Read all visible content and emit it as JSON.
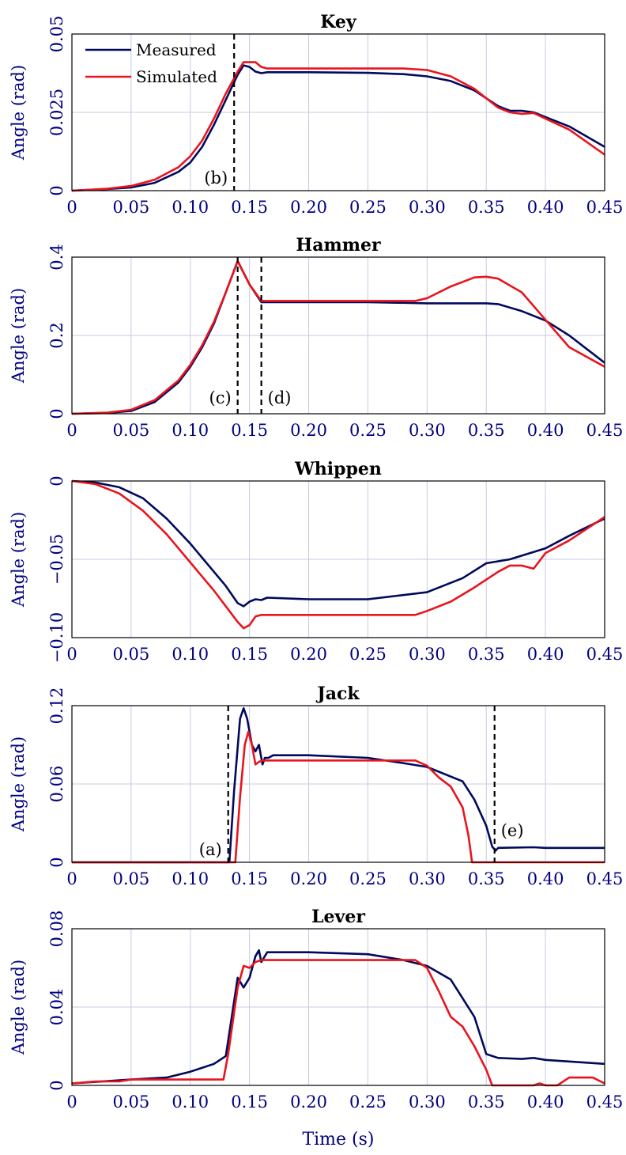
{
  "x_axis_label": "Time (s)",
  "x_ticks": [
    "0",
    "0.05",
    "0.10",
    "0.15",
    "0.20",
    "0.25",
    "0.30",
    "0.35",
    "0.40",
    "0.45"
  ],
  "legend": {
    "measured": "Measured",
    "simulated": "Simulated",
    "placement": "top-left"
  },
  "colors": {
    "measured": "#000a5c",
    "simulated": "#e8141e",
    "grid": "#c7cbe0",
    "tick_text": "#000080"
  },
  "chart_data": [
    {
      "type": "line",
      "title": "Key",
      "ylabel": "Angle (rad)",
      "xlabel": "",
      "xlim": [
        0,
        0.45
      ],
      "ylim": [
        0,
        0.05
      ],
      "y_ticks": [
        0,
        0.025,
        0.05
      ],
      "y_tick_labels": [
        "0",
        "0.025",
        "0.05"
      ],
      "grid": true,
      "series": [
        {
          "name": "Measured",
          "x": [
            0,
            0.03,
            0.05,
            0.07,
            0.09,
            0.1,
            0.11,
            0.12,
            0.13,
            0.14,
            0.145,
            0.15,
            0.155,
            0.16,
            0.165,
            0.2,
            0.25,
            0.28,
            0.3,
            0.32,
            0.34,
            0.36,
            0.37,
            0.38,
            0.39,
            0.4,
            0.42,
            0.45
          ],
          "y": [
            0,
            0.0005,
            0.001,
            0.0025,
            0.006,
            0.009,
            0.014,
            0.021,
            0.029,
            0.037,
            0.04,
            0.0395,
            0.038,
            0.0375,
            0.0378,
            0.0378,
            0.0376,
            0.0372,
            0.0365,
            0.035,
            0.032,
            0.027,
            0.0255,
            0.0255,
            0.025,
            0.0235,
            0.0205,
            0.014
          ]
        },
        {
          "name": "Simulated",
          "x": [
            0,
            0.03,
            0.05,
            0.07,
            0.09,
            0.1,
            0.11,
            0.12,
            0.13,
            0.14,
            0.145,
            0.15,
            0.155,
            0.16,
            0.165,
            0.2,
            0.25,
            0.28,
            0.3,
            0.32,
            0.34,
            0.36,
            0.37,
            0.38,
            0.39,
            0.4,
            0.42,
            0.45
          ],
          "y": [
            0,
            0.0006,
            0.0015,
            0.0035,
            0.0075,
            0.011,
            0.016,
            0.023,
            0.031,
            0.038,
            0.041,
            0.041,
            0.041,
            0.0395,
            0.039,
            0.039,
            0.039,
            0.039,
            0.0385,
            0.0365,
            0.0325,
            0.0265,
            0.025,
            0.0245,
            0.0248,
            0.023,
            0.0195,
            0.0115
          ]
        }
      ],
      "annotations": [
        {
          "label": "(b)",
          "x": 0.137
        }
      ]
    },
    {
      "type": "line",
      "title": "Hammer",
      "ylabel": "Angle (rad)",
      "xlabel": "",
      "xlim": [
        0,
        0.45
      ],
      "ylim": [
        0,
        0.4
      ],
      "y_ticks": [
        0,
        0.2,
        0.4
      ],
      "y_tick_labels": [
        "0",
        "0.2",
        "0.4"
      ],
      "grid": true,
      "series": [
        {
          "name": "Measured",
          "x": [
            0,
            0.03,
            0.05,
            0.07,
            0.09,
            0.1,
            0.11,
            0.12,
            0.13,
            0.14,
            0.15,
            0.16,
            0.2,
            0.25,
            0.3,
            0.35,
            0.36,
            0.38,
            0.4,
            0.42,
            0.45
          ],
          "y": [
            0,
            0.002,
            0.007,
            0.03,
            0.08,
            0.12,
            0.17,
            0.23,
            0.31,
            0.39,
            0.33,
            0.285,
            0.285,
            0.285,
            0.282,
            0.282,
            0.28,
            0.262,
            0.238,
            0.2,
            0.13
          ]
        },
        {
          "name": "Simulated",
          "x": [
            0,
            0.03,
            0.05,
            0.07,
            0.09,
            0.1,
            0.11,
            0.12,
            0.13,
            0.14,
            0.15,
            0.16,
            0.2,
            0.25,
            0.29,
            0.3,
            0.32,
            0.34,
            0.35,
            0.36,
            0.38,
            0.4,
            0.42,
            0.45
          ],
          "y": [
            0,
            0.003,
            0.01,
            0.035,
            0.085,
            0.125,
            0.175,
            0.235,
            0.31,
            0.39,
            0.33,
            0.288,
            0.288,
            0.288,
            0.288,
            0.295,
            0.325,
            0.348,
            0.35,
            0.345,
            0.31,
            0.24,
            0.17,
            0.12
          ]
        }
      ],
      "annotations": [
        {
          "label": "(c)",
          "x": 0.14
        },
        {
          "label": "(d)",
          "x": 0.16
        }
      ]
    },
    {
      "type": "line",
      "title": "Whippen",
      "ylabel": "Angle (rad)",
      "xlabel": "",
      "xlim": [
        0,
        0.45
      ],
      "ylim": [
        -0.1,
        0
      ],
      "y_ticks": [
        -0.1,
        -0.05,
        0
      ],
      "y_tick_labels": [
        "−0.10",
        "−0.05",
        "0"
      ],
      "grid": true,
      "series": [
        {
          "name": "Measured",
          "x": [
            0,
            0.02,
            0.04,
            0.06,
            0.08,
            0.1,
            0.12,
            0.13,
            0.14,
            0.145,
            0.15,
            0.155,
            0.16,
            0.165,
            0.2,
            0.25,
            0.3,
            0.33,
            0.35,
            0.37,
            0.4,
            0.42,
            0.45
          ],
          "y": [
            0,
            -0.001,
            -0.004,
            -0.011,
            -0.024,
            -0.04,
            -0.058,
            -0.067,
            -0.078,
            -0.08,
            -0.077,
            -0.0755,
            -0.076,
            -0.0745,
            -0.0755,
            -0.0755,
            -0.071,
            -0.062,
            -0.0525,
            -0.05,
            -0.043,
            -0.035,
            -0.024
          ]
        },
        {
          "name": "Simulated",
          "x": [
            0,
            0.02,
            0.04,
            0.06,
            0.08,
            0.1,
            0.12,
            0.13,
            0.14,
            0.145,
            0.15,
            0.155,
            0.16,
            0.2,
            0.25,
            0.29,
            0.3,
            0.32,
            0.34,
            0.36,
            0.37,
            0.38,
            0.39,
            0.4,
            0.42,
            0.45
          ],
          "y": [
            0,
            -0.002,
            -0.008,
            -0.019,
            -0.034,
            -0.052,
            -0.07,
            -0.08,
            -0.09,
            -0.094,
            -0.092,
            -0.0865,
            -0.0855,
            -0.0855,
            -0.0855,
            -0.0855,
            -0.083,
            -0.077,
            -0.068,
            -0.058,
            -0.054,
            -0.054,
            -0.056,
            -0.046,
            -0.038,
            -0.023
          ]
        }
      ],
      "annotations": []
    },
    {
      "type": "line",
      "title": "Jack",
      "ylabel": "Angle (rad)",
      "xlabel": "",
      "xlim": [
        0,
        0.45
      ],
      "ylim": [
        0,
        0.12
      ],
      "y_ticks": [
        0,
        0.06,
        0.12
      ],
      "y_tick_labels": [
        "0",
        "0.06",
        "0.12"
      ],
      "grid": true,
      "series": [
        {
          "name": "Measured",
          "x": [
            0,
            0.133,
            0.137,
            0.142,
            0.145,
            0.148,
            0.152,
            0.155,
            0.158,
            0.161,
            0.163,
            0.166,
            0.17,
            0.2,
            0.25,
            0.28,
            0.3,
            0.33,
            0.34,
            0.35,
            0.355,
            0.358,
            0.36,
            0.39,
            0.4,
            0.45
          ],
          "y": [
            0,
            0,
            0.055,
            0.11,
            0.118,
            0.11,
            0.09,
            0.085,
            0.09,
            0.075,
            0.08,
            0.08,
            0.082,
            0.082,
            0.08,
            0.076,
            0.073,
            0.062,
            0.048,
            0.028,
            0.012,
            0.009,
            0.011,
            0.0115,
            0.011,
            0.011
          ]
        },
        {
          "name": "Simulated",
          "x": [
            0,
            0.138,
            0.142,
            0.146,
            0.149,
            0.152,
            0.155,
            0.158,
            0.161,
            0.165,
            0.2,
            0.25,
            0.29,
            0.3,
            0.31,
            0.32,
            0.33,
            0.335,
            0.338,
            0.45
          ],
          "y": [
            0,
            0,
            0.05,
            0.09,
            0.1,
            0.09,
            0.075,
            0.077,
            0.078,
            0.078,
            0.078,
            0.078,
            0.078,
            0.074,
            0.065,
            0.058,
            0.042,
            0.02,
            0,
            0
          ]
        }
      ],
      "annotations": [
        {
          "label": "(a)",
          "x": 0.132
        },
        {
          "label": "(e)",
          "x": 0.357
        }
      ]
    },
    {
      "type": "line",
      "title": "Lever",
      "ylabel": "Angle (rad)",
      "xlabel": "",
      "xlim": [
        0,
        0.45
      ],
      "ylim": [
        0,
        0.08
      ],
      "y_ticks": [
        0,
        0.04,
        0.08
      ],
      "y_tick_labels": [
        "0",
        "0.04",
        "0.08"
      ],
      "grid": true,
      "series": [
        {
          "name": "Measured",
          "x": [
            0,
            0.05,
            0.08,
            0.1,
            0.12,
            0.13,
            0.135,
            0.14,
            0.145,
            0.15,
            0.155,
            0.158,
            0.16,
            0.165,
            0.2,
            0.25,
            0.28,
            0.3,
            0.32,
            0.34,
            0.35,
            0.36,
            0.38,
            0.39,
            0.4,
            0.45
          ],
          "y": [
            0.001,
            0.003,
            0.004,
            0.007,
            0.011,
            0.015,
            0.035,
            0.055,
            0.05,
            0.055,
            0.066,
            0.069,
            0.063,
            0.068,
            0.068,
            0.067,
            0.064,
            0.061,
            0.054,
            0.035,
            0.016,
            0.014,
            0.0135,
            0.014,
            0.013,
            0.011
          ]
        },
        {
          "name": "Simulated",
          "x": [
            0,
            0.02,
            0.04,
            0.05,
            0.1,
            0.128,
            0.132,
            0.14,
            0.145,
            0.15,
            0.155,
            0.16,
            0.2,
            0.25,
            0.29,
            0.3,
            0.31,
            0.32,
            0.33,
            0.34,
            0.35,
            0.355,
            0.39,
            0.395,
            0.4,
            0.41,
            0.42,
            0.44,
            0.45
          ],
          "y": [
            0.001,
            0.002,
            0.002,
            0.003,
            0.003,
            0.003,
            0.016,
            0.05,
            0.061,
            0.06,
            0.063,
            0.064,
            0.064,
            0.064,
            0.064,
            0.06,
            0.048,
            0.035,
            0.03,
            0.02,
            0.008,
            0,
            0,
            0.001,
            0,
            0,
            0.004,
            0.004,
            0.001
          ]
        }
      ],
      "annotations": []
    }
  ]
}
